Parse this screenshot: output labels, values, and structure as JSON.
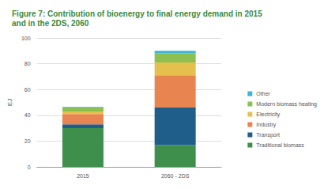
{
  "chart_data": {
    "type": "bar",
    "title": "Figure 7: Contribution of bioenergy to final energy demand in 2015\nand in the 2DS, 2060",
    "y_label": "EJ",
    "categories": [
      "2015",
      "2060 - 2DS"
    ],
    "stacked": true,
    "grid": true,
    "legend": "right",
    "ylim": [
      0,
      100
    ],
    "yticks": [
      0,
      20,
      40,
      60,
      80,
      100
    ],
    "series": [
      {
        "name": "Traditional biomass",
        "color": "#3f8f4c",
        "values": [
          30,
          17
        ]
      },
      {
        "name": "Transport",
        "color": "#1f5d8a",
        "values": [
          3,
          29
        ]
      },
      {
        "name": "Industry",
        "color": "#e8844f",
        "values": [
          8,
          25
        ]
      },
      {
        "name": "Electricity",
        "color": "#e6c04e",
        "values": [
          2,
          10
        ]
      },
      {
        "name": "Modern biomass heating",
        "color": "#8cc152",
        "values": [
          3,
          7
        ]
      },
      {
        "name": "Other",
        "color": "#3bb6d6",
        "values": [
          0.5,
          2
        ]
      }
    ]
  }
}
